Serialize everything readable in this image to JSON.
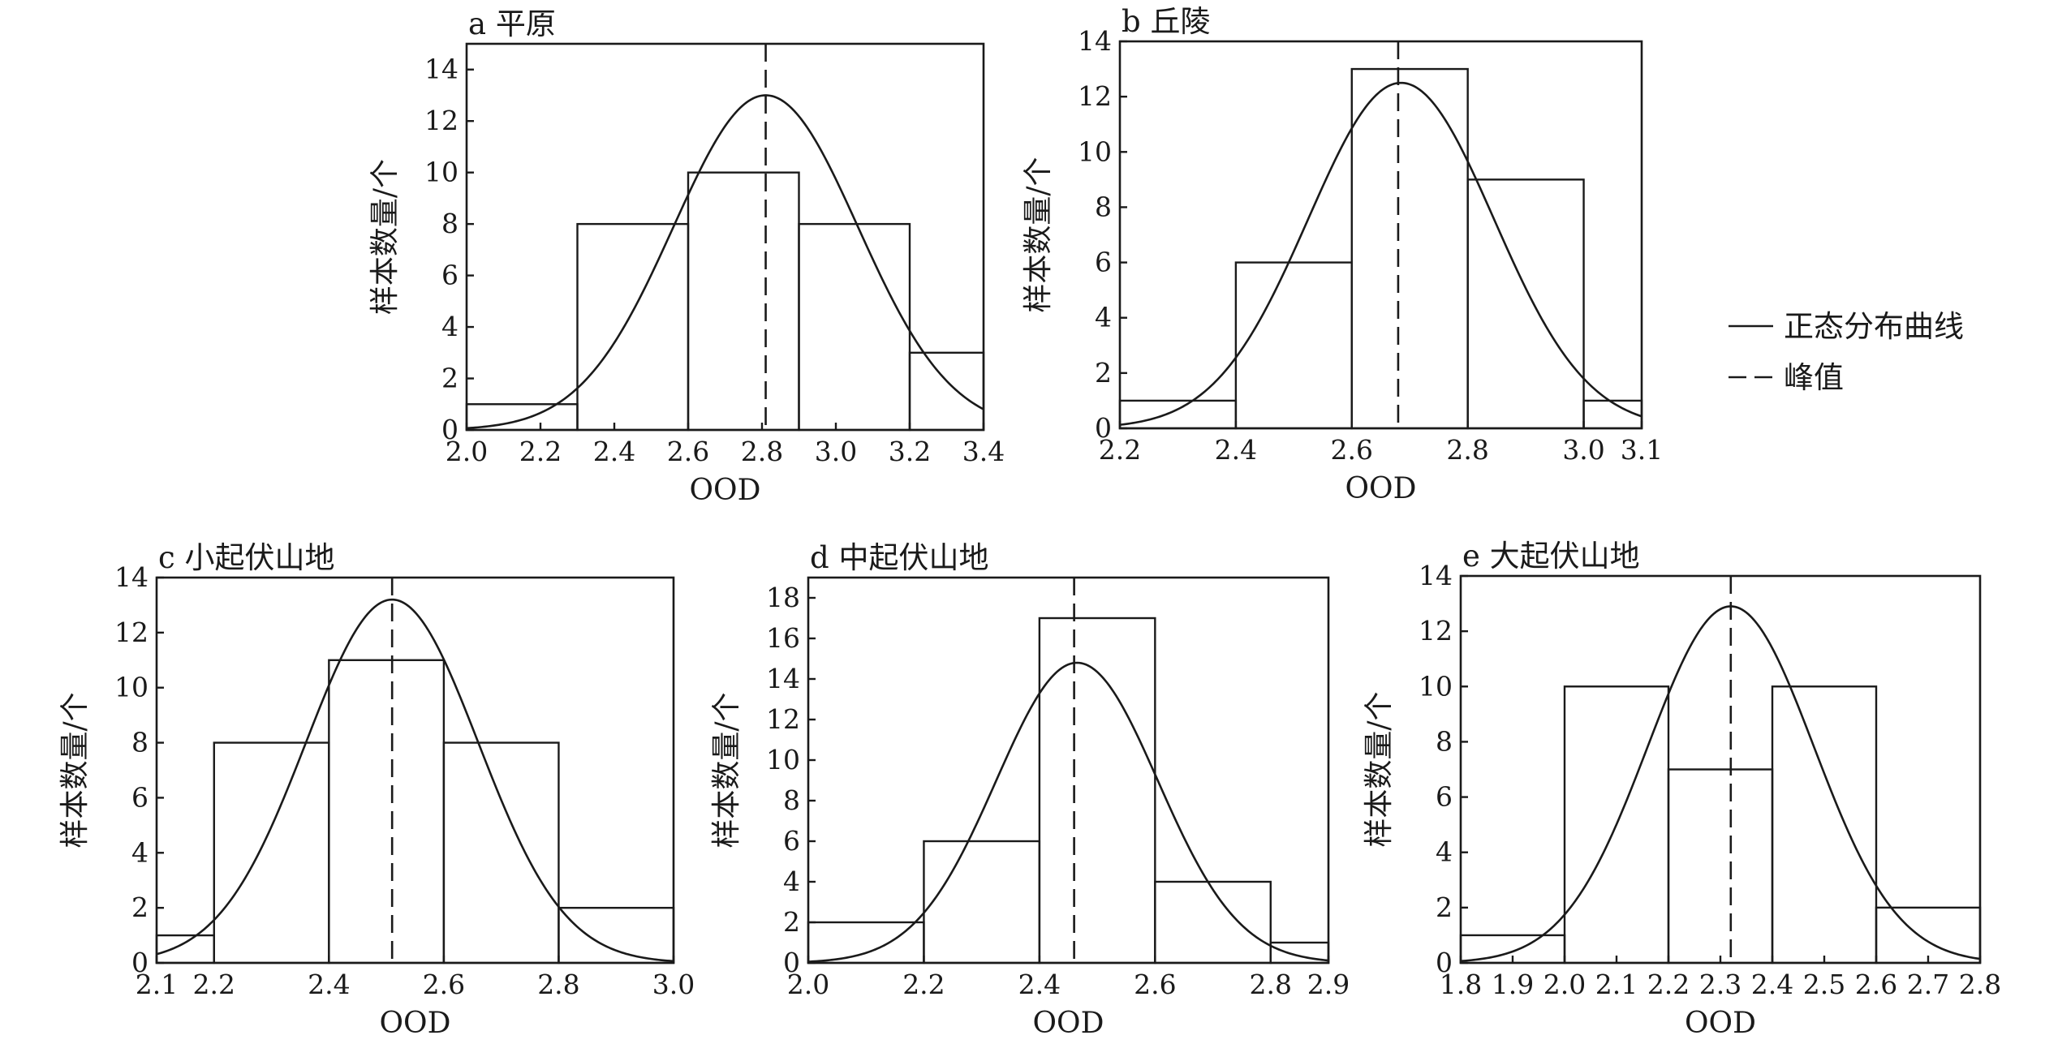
{
  "chart_data": [
    {
      "type": "bar",
      "title": "a 平原",
      "xlabel": "OOD",
      "ylabel": "样本数量/个",
      "xlim": [
        2.0,
        3.4
      ],
      "ylim": [
        0,
        15
      ],
      "xticks": [
        2.0,
        2.2,
        2.4,
        2.6,
        2.8,
        3.0,
        3.2,
        3.4
      ],
      "xtick_labels": [
        "2.0",
        "2.2",
        "2.4",
        "2.6",
        "2.8",
        "3.0",
        "3.2",
        "3.4"
      ],
      "yticks": [
        0,
        2,
        4,
        6,
        8,
        10,
        12,
        14
      ],
      "ytick_labels": [
        "0",
        "2",
        "4",
        "6",
        "8",
        "10",
        "12",
        "14"
      ],
      "bins": [
        {
          "x0": 2.0,
          "x1": 2.3,
          "count": 1
        },
        {
          "x0": 2.3,
          "x1": 2.6,
          "count": 8
        },
        {
          "x0": 2.6,
          "x1": 2.9,
          "count": 10
        },
        {
          "x0": 2.9,
          "x1": 3.2,
          "count": 8
        },
        {
          "x0": 3.2,
          "x1": 3.4,
          "count": 3
        }
      ],
      "peak": 2.81,
      "curve": {
        "mean": 2.81,
        "sd": 0.25,
        "peak_count": 13
      }
    },
    {
      "type": "bar",
      "title": "b 丘陵",
      "xlabel": "OOD",
      "ylabel": "样本数量/个",
      "xlim": [
        2.2,
        3.1
      ],
      "ylim": [
        0,
        14
      ],
      "xticks": [
        2.2,
        2.4,
        2.6,
        2.8,
        3.0,
        3.1
      ],
      "xtick_labels": [
        "2.2",
        "2.4",
        "2.6",
        "2.8",
        "3.0",
        "3.1"
      ],
      "yticks": [
        0,
        2,
        4,
        6,
        8,
        10,
        12,
        14
      ],
      "ytick_labels": [
        "0",
        "2",
        "4",
        "6",
        "8",
        "10",
        "12",
        "14"
      ],
      "bins": [
        {
          "x0": 2.2,
          "x1": 2.4,
          "count": 1
        },
        {
          "x0": 2.4,
          "x1": 2.6,
          "count": 6
        },
        {
          "x0": 2.6,
          "x1": 2.8,
          "count": 13
        },
        {
          "x0": 2.8,
          "x1": 3.0,
          "count": 9
        },
        {
          "x0": 3.0,
          "x1": 3.1,
          "count": 1
        }
      ],
      "peak": 2.68,
      "curve": {
        "mean": 2.685,
        "sd": 0.16,
        "peak_count": 12.5
      }
    },
    {
      "type": "bar",
      "title": "c 小起伏山地",
      "xlabel": "OOD",
      "ylabel": "样本数量/个",
      "xlim": [
        2.1,
        3.0
      ],
      "ylim": [
        0,
        14
      ],
      "xticks": [
        2.1,
        2.2,
        2.4,
        2.6,
        2.8,
        3.0
      ],
      "xtick_labels": [
        "2.1",
        "2.2",
        "2.4",
        "2.6",
        "2.8",
        "3.0"
      ],
      "yticks": [
        0,
        2,
        4,
        6,
        8,
        10,
        12,
        14
      ],
      "ytick_labels": [
        "0",
        "2",
        "4",
        "6",
        "8",
        "10",
        "12",
        "14"
      ],
      "bins": [
        {
          "x0": 2.1,
          "x1": 2.2,
          "count": 1
        },
        {
          "x0": 2.2,
          "x1": 2.4,
          "count": 8
        },
        {
          "x0": 2.4,
          "x1": 2.6,
          "count": 11
        },
        {
          "x0": 2.6,
          "x1": 2.8,
          "count": 8
        },
        {
          "x0": 2.8,
          "x1": 3.0,
          "count": 2
        }
      ],
      "peak": 2.51,
      "curve": {
        "mean": 2.51,
        "sd": 0.15,
        "peak_count": 13.2
      }
    },
    {
      "type": "bar",
      "title": "d 中起伏山地",
      "xlabel": "OOD",
      "ylabel": "样本数量/个",
      "xlim": [
        2.0,
        2.9
      ],
      "ylim": [
        0,
        19
      ],
      "xticks": [
        2.0,
        2.2,
        2.4,
        2.6,
        2.8,
        2.9
      ],
      "xtick_labels": [
        "2.0",
        "2.2",
        "2.4",
        "2.6",
        "2.8",
        "2.9"
      ],
      "yticks": [
        0,
        2,
        4,
        6,
        8,
        10,
        12,
        14,
        16,
        18
      ],
      "ytick_labels": [
        "0",
        "2",
        "4",
        "6",
        "8",
        "10",
        "12",
        "14",
        "16",
        "18"
      ],
      "bins": [
        {
          "x0": 2.0,
          "x1": 2.2,
          "count": 2
        },
        {
          "x0": 2.2,
          "x1": 2.4,
          "count": 6
        },
        {
          "x0": 2.4,
          "x1": 2.6,
          "count": 17
        },
        {
          "x0": 2.6,
          "x1": 2.8,
          "count": 4
        },
        {
          "x0": 2.8,
          "x1": 2.9,
          "count": 1
        }
      ],
      "peak": 2.46,
      "curve": {
        "mean": 2.465,
        "sd": 0.14,
        "peak_count": 14.8
      }
    },
    {
      "type": "bar",
      "title": "e 大起伏山地",
      "xlabel": "OOD",
      "ylabel": "样本数量/个",
      "xlim": [
        1.8,
        2.8
      ],
      "ylim": [
        0,
        14
      ],
      "xticks": [
        1.8,
        1.9,
        2.0,
        2.1,
        2.2,
        2.3,
        2.4,
        2.5,
        2.6,
        2.7,
        2.8
      ],
      "xtick_labels": [
        "1.8",
        "1.9",
        "2.0",
        "2.1",
        "2.2",
        "2.3",
        "2.4",
        "2.5",
        "2.6",
        "2.7",
        "2.8"
      ],
      "yticks": [
        0,
        2,
        4,
        6,
        8,
        10,
        12,
        14
      ],
      "ytick_labels": [
        "0",
        "2",
        "4",
        "6",
        "8",
        "10",
        "12",
        "14"
      ],
      "bins": [
        {
          "x0": 1.8,
          "x1": 2.0,
          "count": 1
        },
        {
          "x0": 2.0,
          "x1": 2.2,
          "count": 10
        },
        {
          "x0": 2.2,
          "x1": 2.4,
          "count": 7
        },
        {
          "x0": 2.4,
          "x1": 2.6,
          "count": 10
        },
        {
          "x0": 2.6,
          "x1": 2.8,
          "count": 2
        }
      ],
      "peak": 2.32,
      "curve": {
        "mean": 2.32,
        "sd": 0.16,
        "peak_count": 12.9
      }
    }
  ],
  "legend": {
    "position": "right",
    "items": [
      {
        "label": "正态分布曲线",
        "line": "solid"
      },
      {
        "label": "峰值",
        "line": "dashed"
      }
    ]
  },
  "colors": {
    "ink": "#1a1a1a",
    "background": "#ffffff"
  }
}
